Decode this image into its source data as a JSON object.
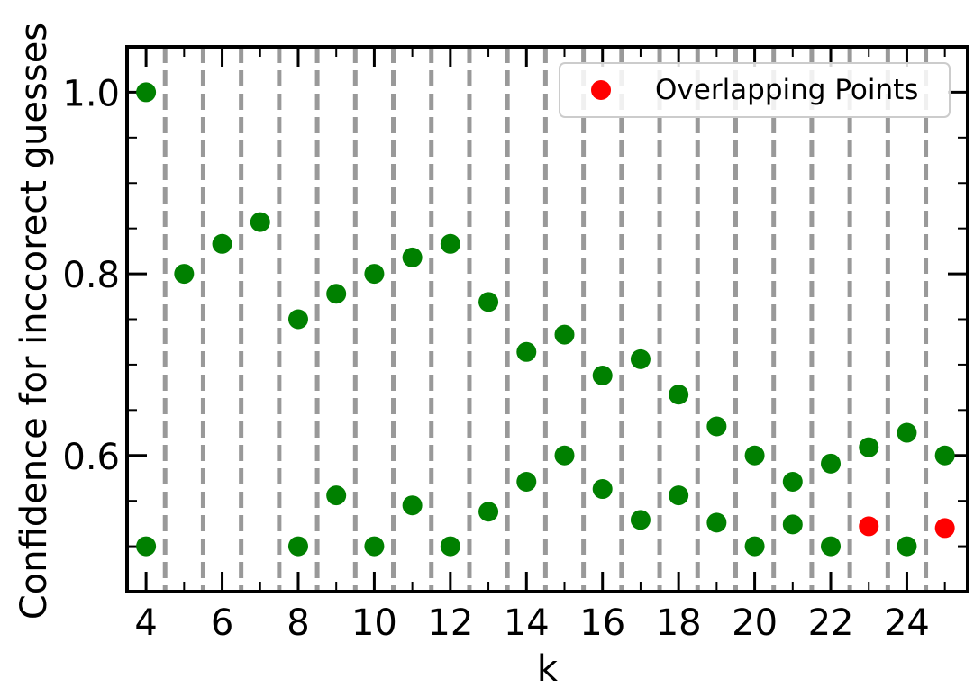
{
  "chart_data": {
    "type": "scatter",
    "xlabel": "k",
    "ylabel": "Confidence for inccorect guesses",
    "xlim": [
      3.5,
      25.6
    ],
    "ylim": [
      0.45,
      1.05
    ],
    "xticks": [
      4,
      6,
      8,
      10,
      12,
      14,
      16,
      18,
      20,
      22,
      24
    ],
    "xtick_labels": [
      "4",
      "6",
      "8",
      "10",
      "12",
      "14",
      "16",
      "18",
      "20",
      "22",
      "24"
    ],
    "yticks": [
      0.6,
      0.8,
      1.0
    ],
    "ytick_labels": [
      "0.6",
      "0.8",
      "1.0"
    ],
    "vertical_dashed_lines": [
      4.5,
      5.5,
      6.5,
      7.5,
      8.5,
      9.5,
      10.5,
      11.5,
      12.5,
      13.5,
      14.5,
      15.5,
      16.5,
      17.5,
      18.5,
      19.5,
      20.5,
      21.5,
      22.5,
      23.5,
      24.5
    ],
    "grid": false,
    "legend_position": "top-right",
    "colors": {
      "normal": "#008000",
      "overlap": "#ff0000",
      "dashed": "#999999"
    },
    "series": [
      {
        "color": "#008000",
        "points": [
          [
            4,
            1.0
          ],
          [
            4,
            0.5
          ],
          [
            5,
            0.8
          ],
          [
            6,
            0.833
          ],
          [
            7,
            0.857
          ],
          [
            8,
            0.75
          ],
          [
            8,
            0.5
          ],
          [
            9,
            0.778
          ],
          [
            9,
            0.556
          ],
          [
            10,
            0.8
          ],
          [
            10,
            0.5
          ],
          [
            11,
            0.818
          ],
          [
            11,
            0.545
          ],
          [
            12,
            0.833
          ],
          [
            12,
            0.5
          ],
          [
            13,
            0.769
          ],
          [
            13,
            0.538
          ],
          [
            14,
            0.714
          ],
          [
            14,
            0.571
          ],
          [
            15,
            0.733
          ],
          [
            15,
            0.6
          ],
          [
            16,
            0.688
          ],
          [
            16,
            0.563
          ],
          [
            17,
            0.706
          ],
          [
            17,
            0.529
          ],
          [
            18,
            0.667
          ],
          [
            18,
            0.556
          ],
          [
            19,
            0.632
          ],
          [
            19,
            0.526
          ],
          [
            20,
            0.6
          ],
          [
            20,
            0.5
          ],
          [
            21,
            0.571
          ],
          [
            21,
            0.524
          ],
          [
            22,
            0.591
          ],
          [
            22,
            0.5
          ],
          [
            23,
            0.609
          ],
          [
            24,
            0.625
          ],
          [
            24,
            0.5
          ],
          [
            25,
            0.6
          ]
        ]
      },
      {
        "name": "Overlapping Points",
        "color": "#ff0000",
        "points": [
          [
            23,
            0.522
          ],
          [
            25,
            0.52
          ]
        ]
      }
    ]
  }
}
